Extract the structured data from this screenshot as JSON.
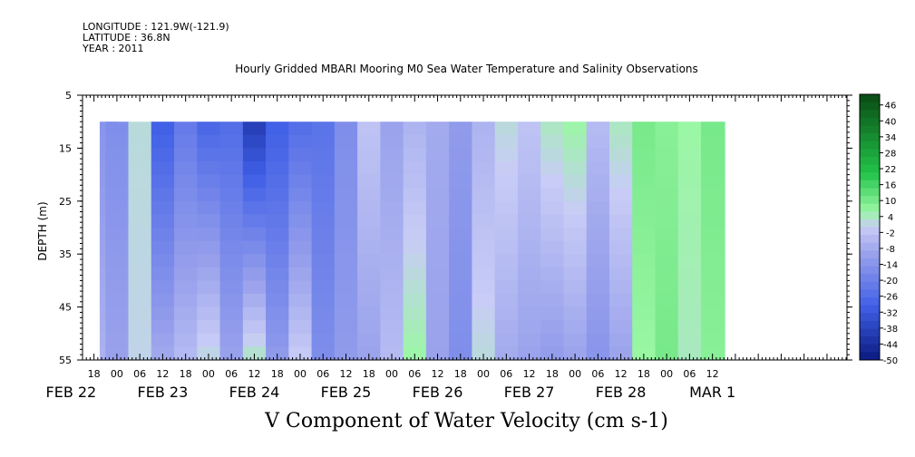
{
  "header": {
    "longitude": "LONGITUDE : 121.9W(-121.9)",
    "latitude": "LATITUDE : 36.8N",
    "year": "YEAR : 2011",
    "title": "Hourly Gridded MBARI Mooring M0 Sea Water Temperature and Salinity Observations"
  },
  "chart_data": {
    "type": "heatmap",
    "title": "Hourly Gridded MBARI Mooring M0 Sea Water Temperature and Salinity Observations",
    "xlabel": "V Component of Water Velocity (cm s-1)",
    "ylabel": "DEPTH (m)",
    "ylim": [
      55,
      5
    ],
    "y_ticks": [
      5,
      15,
      25,
      35,
      45,
      55
    ],
    "data_depth_range": [
      10,
      55
    ],
    "x_range_hours": [
      "FEB 22 15:00",
      "MAR 1 15:00"
    ],
    "x_hour_labels": [
      "18",
      "00",
      "06",
      "12",
      "18",
      "00",
      "06",
      "12",
      "18",
      "00",
      "06",
      "12",
      "18",
      "00",
      "06",
      "12",
      "18",
      "00",
      "06",
      "12",
      "18",
      "00",
      "06",
      "12",
      "18",
      "00",
      "06",
      "12"
    ],
    "x_day_labels": [
      "FEB 22",
      "FEB 23",
      "FEB 24",
      "FEB 25",
      "FEB 26",
      "FEB 27",
      "FEB 28",
      "MAR  1"
    ],
    "colorbar": {
      "labels": [
        "46",
        "40",
        "34",
        "28",
        "22",
        "16",
        "10",
        "4",
        "-2",
        "-8",
        "-14",
        "-20",
        "-26",
        "-32",
        "-38",
        "-44",
        "-50"
      ],
      "range": [
        -50,
        50
      ]
    },
    "grid": false,
    "columns": [
      {
        "day": "FEB 22",
        "hour": 21,
        "surface": -14,
        "bottom": -6
      },
      {
        "day": "FEB 23",
        "hour": 0,
        "surface": -16,
        "bottom": -10
      },
      {
        "day": "FEB 23",
        "hour": 6,
        "surface": 2,
        "bottom": 1
      },
      {
        "day": "FEB 23",
        "hour": 12,
        "surface": -30,
        "bottom": -8
      },
      {
        "day": "FEB 23",
        "hour": 18,
        "surface": -22,
        "bottom": -4
      },
      {
        "day": "FEB 24",
        "hour": 0,
        "surface": -28,
        "bottom": 2
      },
      {
        "day": "FEB 24",
        "hour": 6,
        "surface": -26,
        "bottom": -10
      },
      {
        "day": "FEB 24",
        "hour": 12,
        "surface": -40,
        "bottom": 4
      },
      {
        "day": "FEB 24",
        "hour": 18,
        "surface": -30,
        "bottom": -12
      },
      {
        "day": "FEB 25",
        "hour": 0,
        "surface": -26,
        "bottom": 0
      },
      {
        "day": "FEB 25",
        "hour": 6,
        "surface": -24,
        "bottom": -16
      },
      {
        "day": "FEB 25",
        "hour": 12,
        "surface": -16,
        "bottom": -12
      },
      {
        "day": "FEB 25",
        "hour": 18,
        "surface": -2,
        "bottom": -10
      },
      {
        "day": "FEB 26",
        "hour": 0,
        "surface": -10,
        "bottom": -4
      },
      {
        "day": "FEB 26",
        "hour": 6,
        "surface": -6,
        "bottom": 6
      },
      {
        "day": "FEB 26",
        "hour": 12,
        "surface": -8,
        "bottom": -10
      },
      {
        "day": "FEB 26",
        "hour": 18,
        "surface": -12,
        "bottom": -16
      },
      {
        "day": "FEB 27",
        "hour": 0,
        "surface": -6,
        "bottom": 2
      },
      {
        "day": "FEB 27",
        "hour": 6,
        "surface": 2,
        "bottom": -8
      },
      {
        "day": "FEB 27",
        "hour": 12,
        "surface": -2,
        "bottom": -10
      },
      {
        "day": "FEB 27",
        "hour": 18,
        "surface": 4,
        "bottom": -12
      },
      {
        "day": "FEB 28",
        "hour": 0,
        "surface": 6,
        "bottom": -10
      },
      {
        "day": "FEB 28",
        "hour": 6,
        "surface": -4,
        "bottom": -14
      },
      {
        "day": "FEB 28",
        "hour": 12,
        "surface": 4,
        "bottom": -10
      },
      {
        "day": "FEB 28",
        "hour": 18,
        "surface": 10,
        "bottom": 6
      },
      {
        "day": "MAR 1",
        "hour": 0,
        "surface": 8,
        "bottom": 10
      },
      {
        "day": "MAR 1",
        "hour": 6,
        "surface": 6,
        "bottom": 4
      },
      {
        "day": "MAR 1",
        "hour": 12,
        "surface": 10,
        "bottom": 8
      }
    ]
  },
  "colors": {
    "positive_dark": "#0a4a14",
    "positive_mid": "#22c44a",
    "positive_light": "#9af7a4",
    "near_zero": "#c8ccf6",
    "negative_light": "#9aa2ec",
    "negative_mid": "#3f5fe6",
    "negative_dark": "#0a1a80",
    "axis": "#000000"
  }
}
